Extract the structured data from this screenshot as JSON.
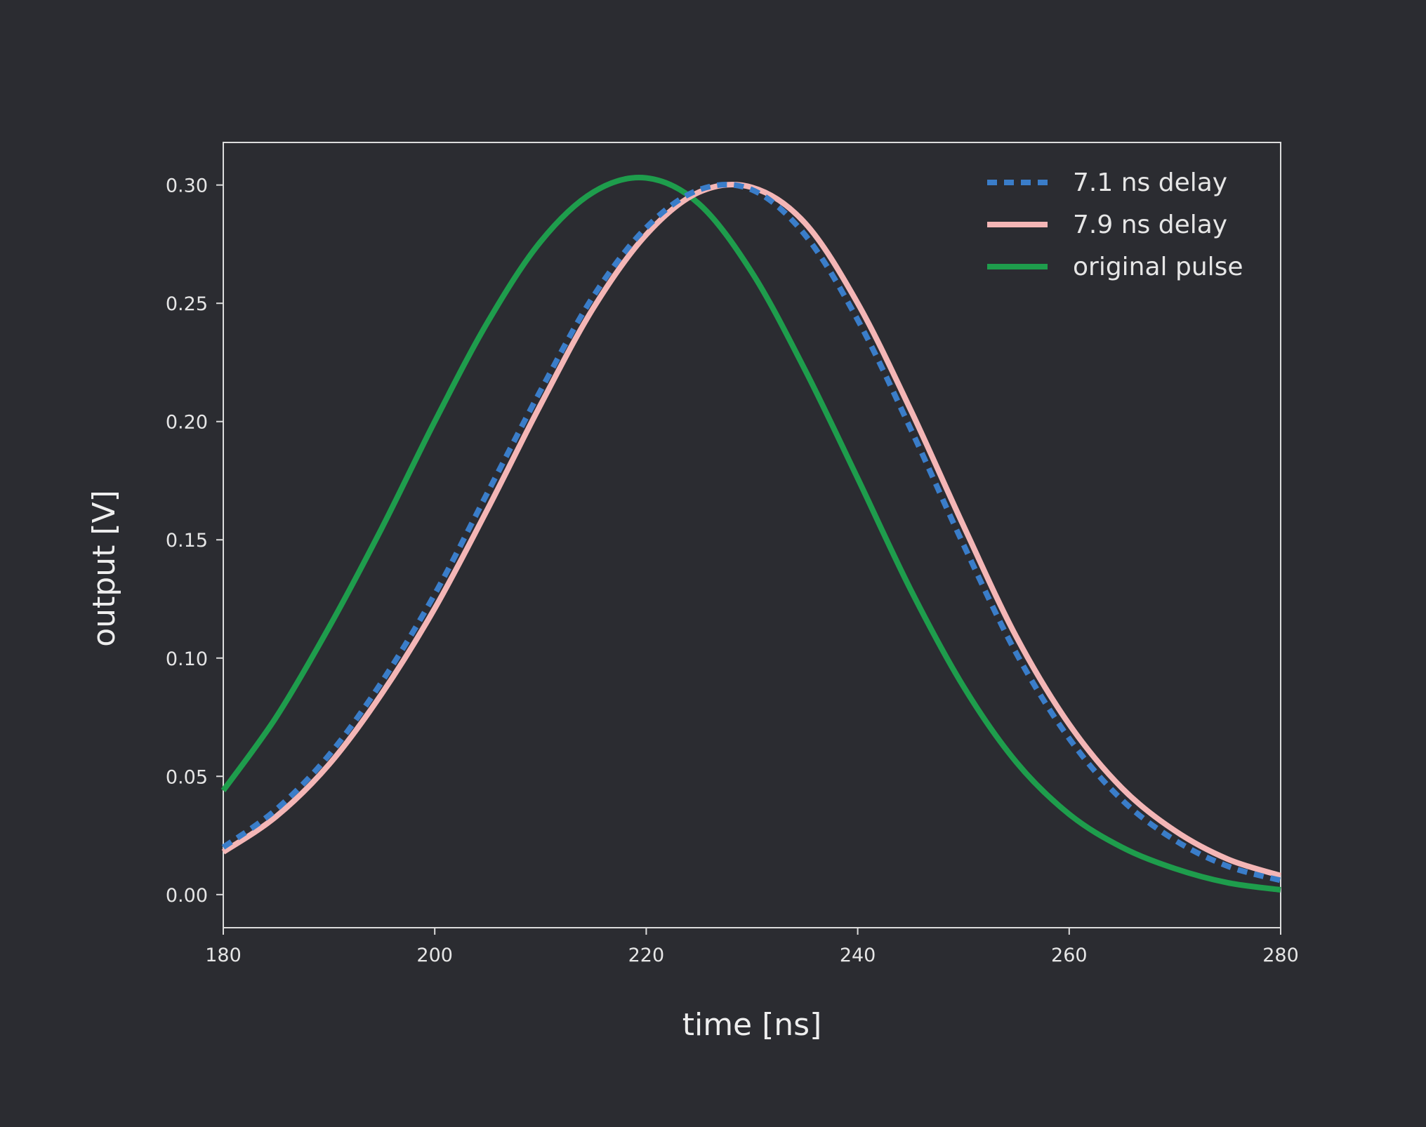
{
  "chart_data": {
    "type": "line",
    "title": "",
    "xlabel": "time [ns]",
    "ylabel": "output [V]",
    "xlim": [
      180,
      280
    ],
    "ylim": [
      -0.014,
      0.318
    ],
    "xticks": [
      180,
      200,
      220,
      240,
      260,
      280
    ],
    "xtick_labels": [
      "180",
      "200",
      "220",
      "240",
      "260",
      "280"
    ],
    "yticks": [
      0.0,
      0.05,
      0.1,
      0.15,
      0.2,
      0.25,
      0.3
    ],
    "ytick_labels": [
      "0.00",
      "0.05",
      "0.10",
      "0.15",
      "0.20",
      "0.25",
      "0.30"
    ],
    "grid": false,
    "legend_position": "top-right",
    "x": [
      180,
      185,
      190,
      195,
      200,
      205,
      210,
      215,
      220,
      225,
      230,
      235,
      240,
      245,
      250,
      255,
      260,
      265,
      270,
      275,
      280
    ],
    "series": [
      {
        "name": "7.1 ns delay",
        "color": "#3a7dc9",
        "style": "dashed",
        "values": [
          0.02,
          0.036,
          0.059,
          0.09,
          0.127,
          0.17,
          0.213,
          0.253,
          0.282,
          0.298,
          0.298,
          0.279,
          0.243,
          0.197,
          0.148,
          0.102,
          0.066,
          0.04,
          0.023,
          0.012,
          0.006
        ]
      },
      {
        "name": "7.9 ns delay",
        "color": "#f4b6b6",
        "style": "solid",
        "values": [
          0.018,
          0.033,
          0.055,
          0.085,
          0.121,
          0.163,
          0.207,
          0.248,
          0.279,
          0.297,
          0.299,
          0.284,
          0.25,
          0.205,
          0.156,
          0.109,
          0.072,
          0.045,
          0.027,
          0.015,
          0.008
        ]
      },
      {
        "name": "original pulse",
        "color": "#1e9d4c",
        "style": "solid",
        "values": [
          0.044,
          0.075,
          0.113,
          0.155,
          0.2,
          0.242,
          0.276,
          0.297,
          0.303,
          0.292,
          0.263,
          0.222,
          0.176,
          0.129,
          0.088,
          0.056,
          0.034,
          0.02,
          0.011,
          0.005,
          0.002
        ]
      }
    ]
  }
}
